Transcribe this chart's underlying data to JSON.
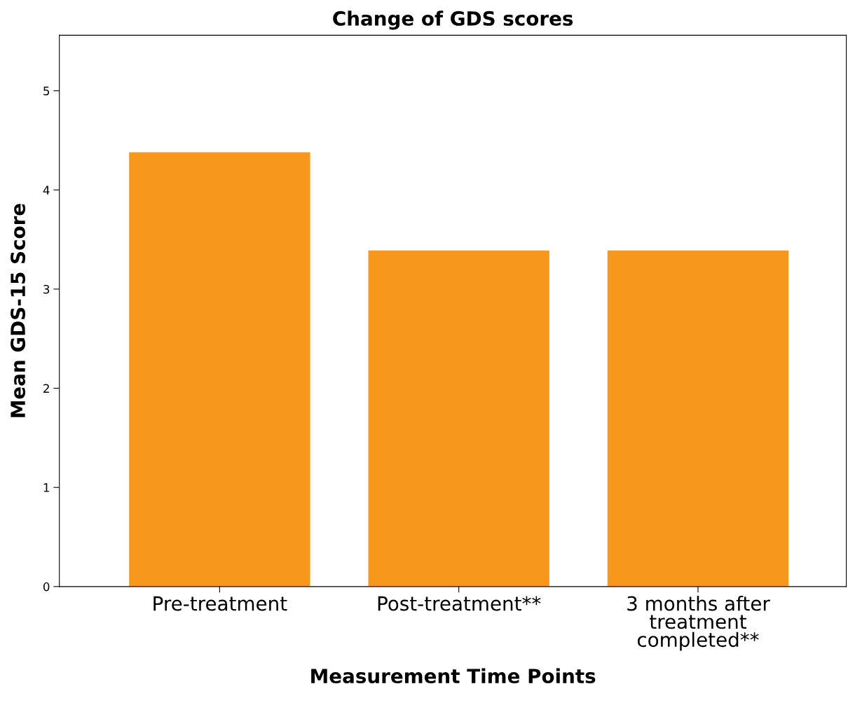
{
  "chart_data": {
    "type": "bar",
    "title": "Change of GDS scores",
    "xlabel": "Measurement Time Points",
    "ylabel": "Mean GDS-15 Score",
    "categories": [
      "Pre-treatment",
      "Post-treatment**",
      "3 months after\ntreatment\ncompleted**"
    ],
    "values": [
      4.38,
      3.39,
      3.39
    ],
    "color": "#f7981d",
    "ylim": [
      0,
      5.56
    ],
    "yticks": [
      0,
      1,
      2,
      3,
      4,
      5
    ],
    "grid": false,
    "legend": false
  }
}
